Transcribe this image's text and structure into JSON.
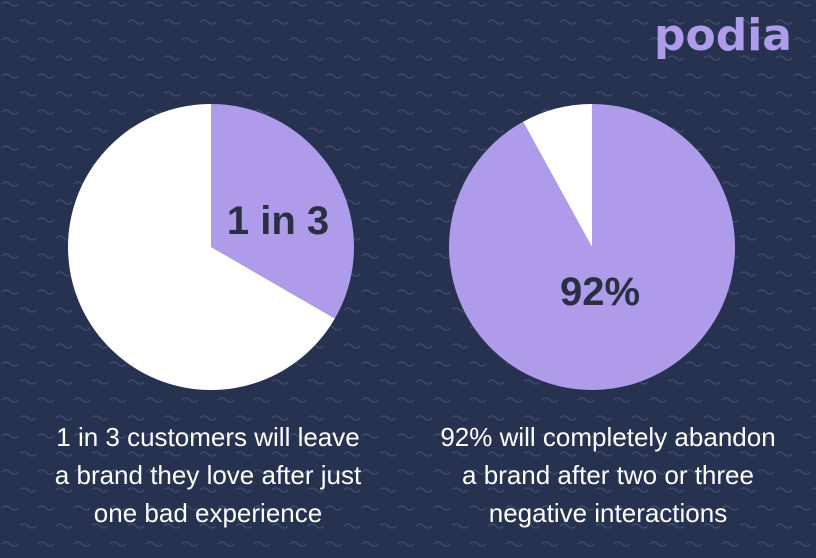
{
  "brand": {
    "logo_text": "podia",
    "color": "#ae9be9"
  },
  "colors": {
    "background": "#26324f",
    "accent": "#ae9be9",
    "white": "#ffffff",
    "label_text": "#2b2f44"
  },
  "chart_data": [
    {
      "type": "pie",
      "slices": [
        {
          "value": 33.33,
          "color": "#ae9be9"
        },
        {
          "value": 66.67,
          "color": "#ffffff"
        }
      ],
      "label": "1 in 3",
      "caption": [
        "1 in 3 customers will leave",
        "a brand they love after just",
        "one bad experience"
      ]
    },
    {
      "type": "pie",
      "slices": [
        {
          "value": 92,
          "color": "#ae9be9"
        },
        {
          "value": 8,
          "color": "#ffffff"
        }
      ],
      "label": "92%",
      "caption": [
        "92% will completely abandon",
        "a brand after two or three",
        "negative interactions"
      ]
    }
  ]
}
